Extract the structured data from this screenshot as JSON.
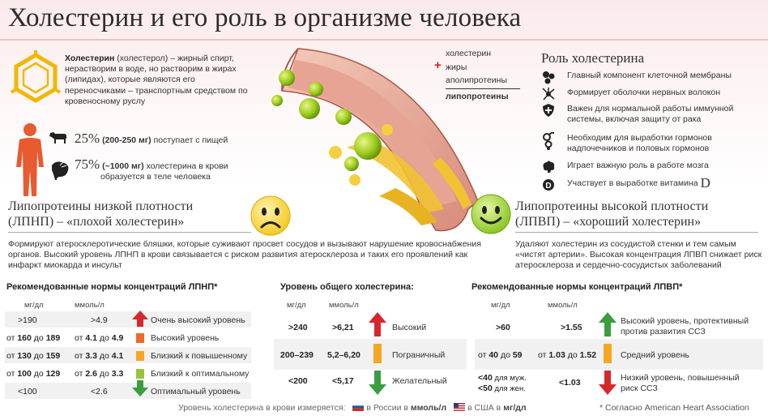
{
  "title": "Холестерин и его роль в организме человека",
  "intro": {
    "term": "Холестерин",
    "text": " (холестерол) – жирный спирт, нерастворим в воде, но растворим в жирах (липидах), которые являются его переносчиками – транспортным средством по кровеносному руслу"
  },
  "sources": {
    "diet_pct": "25%",
    "diet_amount": "(200-250 мг)",
    "diet_text": "поступает с пищей",
    "body_pct": "75%",
    "body_amount": "(~1000 мг)",
    "body_text_1": "холестерина в крови",
    "body_text_2": "образуется в теле человека"
  },
  "formula": {
    "line1": "холестерин",
    "plus": "+",
    "line2": "жиры",
    "line3": "аполипротеины",
    "result": "липопротеины"
  },
  "roles": {
    "title": "Роль холестерина",
    "items": [
      {
        "icon": "cells-icon",
        "text": "Главный компонент клеточной мембраны"
      },
      {
        "icon": "nerve-icon",
        "text": "Формирует оболочки нервных волокон"
      },
      {
        "icon": "shield-icon",
        "text": "Важен для нормальной работы иммунной системы, включая защиту от рака"
      },
      {
        "icon": "gender-icon",
        "text": "Необходим для выработки гормонов надпочечников и половых гормонов"
      },
      {
        "icon": "brain-icon",
        "text": "Играет важную роль в работе мозга"
      },
      {
        "icon": "vitamin-icon",
        "text": "Участвует в выработке витамина",
        "extra": "D"
      }
    ]
  },
  "ldl": {
    "title_1": "Липопротеины низкой плотности",
    "title_2": "(ЛПНП) – «плохой холестерин»",
    "desc": "Формируют атеросклеротические бляшки, которые суживают просвет сосудов и вызывают нарушение кровоснабжения органов. Высокий уровень ЛПНП в крови связывается с риском развития атеросклероза и таких его проявлений как инфаркт миокарда и инсульт"
  },
  "hdl": {
    "title_1": "Липопротеины высокой плотности",
    "title_2": "(ЛПВП) – «хороший холестерин»",
    "desc": "Удаляют холестерин из сосудистой стенки и тем самым «чистят артерии». Высокая концентрация ЛПВП снижает риск атеросклероза и сердечно-сосудистых заболеваний"
  },
  "ldl_table": {
    "title": "Рекомендованные нормы концентраций ЛПНП*",
    "col_mg": "мг/дл",
    "col_mmol": "ммоль/л",
    "rows": [
      {
        "mg": ">190",
        "mmol": ">4.9",
        "label": "Очень высокий уровень",
        "color": "#d7262d"
      },
      {
        "mg_pre": "от ",
        "mg": "160",
        "mg_mid": " до ",
        "mg2": "189",
        "mmol_pre": "от ",
        "mmol": "4.1",
        "mmol_mid": " до ",
        "mmol2": "4.9",
        "label": "Высокий уровень",
        "color": "#ec6a2a"
      },
      {
        "mg_pre": "от ",
        "mg": "130",
        "mg_mid": " до ",
        "mg2": "159",
        "mmol_pre": "от ",
        "mmol": "3.3",
        "mmol_mid": " до ",
        "mmol2": "4.1",
        "label": "Близкий к повышенному",
        "color": "#f5a623"
      },
      {
        "mg_pre": "от ",
        "mg": "100",
        "mg_mid": " до ",
        "mg2": "129",
        "mmol_pre": "от ",
        "mmol": "2.6",
        "mmol_mid": " до ",
        "mmol2": "3.3",
        "label": "Близкий к оптимальному",
        "color": "#9cc33c"
      },
      {
        "mg": "<100",
        "mmol": "<2.6",
        "label": "Оптимальный уровень",
        "color": "#3a9e3f"
      }
    ]
  },
  "total_table": {
    "title": "Уровень общего холестерина:",
    "col_mg": "мг/дл",
    "col_mmol": "ммоль/л",
    "rows": [
      {
        "mg": ">240",
        "mmol": ">6,21",
        "label": "Высокий",
        "color": "#d7262d"
      },
      {
        "mg": "200–239",
        "mmol": "5,2–6,20",
        "label": "Пограничный",
        "color": "#f5a623"
      },
      {
        "mg": "<200",
        "mmol": "<5,17",
        "label": "Желательный",
        "color": "#3a9e3f"
      }
    ]
  },
  "hdl_table": {
    "title": "Рекомендованные нормы концентраций ЛПВП*",
    "col_mg": "мг/дл",
    "col_mmol": "ммоль/л",
    "rows": [
      {
        "mg": ">60",
        "mmol": ">1.55",
        "label_1": "Высокий уровень, протективный",
        "label_2": "против развития ССЗ",
        "color": "#3a9e3f"
      },
      {
        "mg_pre": "от ",
        "mg": "40",
        "mg_mid": " до ",
        "mg2": "59",
        "mmol_pre": "от ",
        "mmol": "1.03",
        "mmol_mid": " до ",
        "mmol2": "1.52",
        "label_1": "Средний уровень",
        "color": "#f5a623"
      },
      {
        "mg_a": "<40",
        "mg_a_note": " для муж.",
        "mg_b": "<50",
        "mg_b_note": " для жен.",
        "mmol": "<1.03",
        "label_1": "Низкий уровень, повышенный",
        "label_2": "риск ССЗ",
        "color": "#d7262d"
      }
    ]
  },
  "footer": {
    "lead": "Уровень холестерина в крови измеряется:",
    "ru_pre": "в России в ",
    "ru_unit": "ммоль/л",
    "us_pre": "в США в ",
    "us_unit": "мг/дл",
    "note": "* Согласно American Heart Association"
  }
}
